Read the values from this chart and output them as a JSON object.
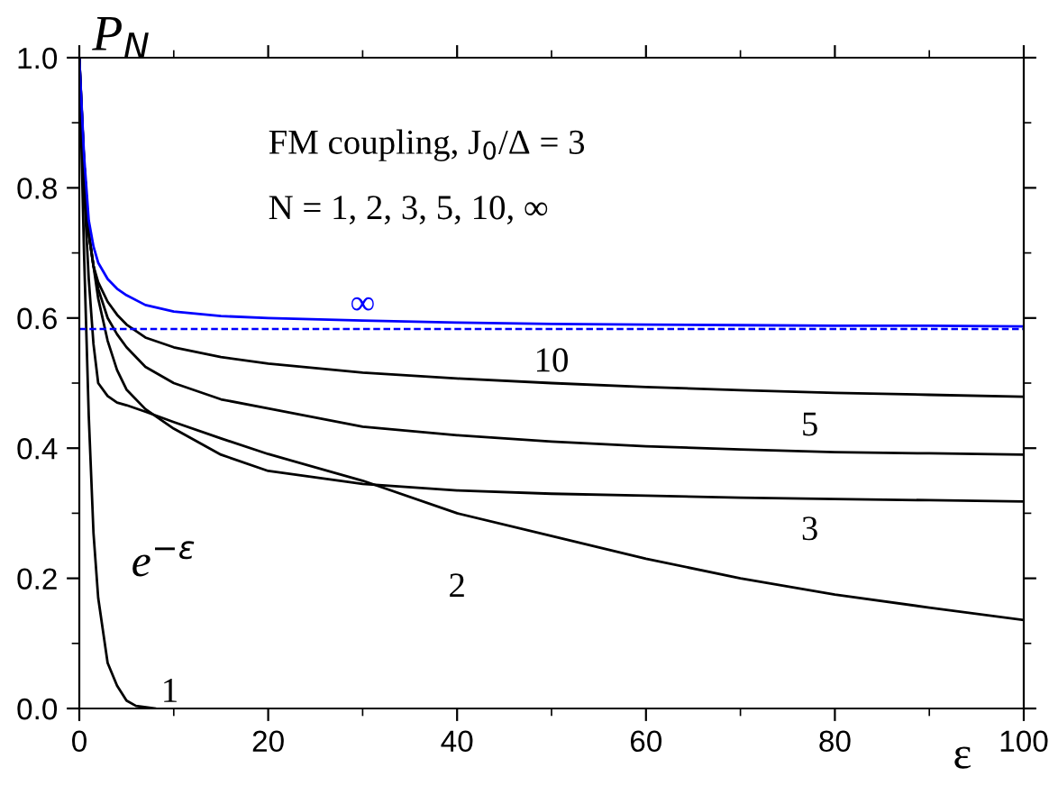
{
  "chart_data": {
    "type": "line",
    "xlabel": "ε",
    "ylabel": "P$_{N}$",
    "xlim": [
      0,
      100
    ],
    "ylim": [
      0,
      1.0
    ],
    "xticks": [
      0,
      20,
      40,
      60,
      80,
      100
    ],
    "yticks": [
      {
        "value": 0,
        "label": "0.0"
      },
      {
        "value": 0.2,
        "label": "0.2"
      },
      {
        "value": 0.4,
        "label": "0.4"
      },
      {
        "value": 0.6,
        "label": "0.6"
      },
      {
        "value": 0.8,
        "label": "0.8"
      },
      {
        "value": 1.0,
        "label": "1.0"
      }
    ],
    "grid": false,
    "legend": false,
    "line_style": "solid",
    "marker": "none",
    "series": [
      {
        "name": "1",
        "color": "#000000",
        "x": [
          0,
          0.5,
          1,
          1.5,
          2,
          3,
          4,
          5,
          6,
          8
        ],
        "values": [
          1,
          0.7,
          0.45,
          0.27,
          0.17,
          0.07,
          0.035,
          0.012,
          0.004,
          0
        ]
      },
      {
        "name": "2",
        "color": "#000000",
        "x": [
          0,
          0.5,
          1,
          1.5,
          2,
          3,
          4,
          5,
          7,
          10,
          15,
          20,
          30,
          40,
          50,
          60,
          70,
          80,
          90,
          100
        ],
        "values": [
          1,
          0.8,
          0.66,
          0.56,
          0.5,
          0.48,
          0.47,
          0.466,
          0.456,
          0.44,
          0.415,
          0.391,
          0.35,
          0.3,
          0.265,
          0.23,
          0.2,
          0.175,
          0.155,
          0.136
        ]
      },
      {
        "name": "3",
        "color": "#000000",
        "x": [
          0,
          0.5,
          1,
          1.5,
          2,
          3,
          4,
          5,
          7,
          10,
          15,
          20,
          30,
          40,
          50,
          60,
          70,
          80,
          90,
          100
        ],
        "values": [
          1,
          0.84,
          0.73,
          0.68,
          0.63,
          0.565,
          0.52,
          0.49,
          0.46,
          0.43,
          0.39,
          0.365,
          0.345,
          0.335,
          0.33,
          0.327,
          0.324,
          0.322,
          0.32,
          0.318
        ]
      },
      {
        "name": "5",
        "color": "#000000",
        "x": [
          0,
          0.5,
          1,
          1.5,
          2,
          3,
          4,
          5,
          7,
          10,
          15,
          20,
          30,
          40,
          50,
          60,
          70,
          80,
          90,
          100
        ],
        "values": [
          1,
          0.84,
          0.73,
          0.68,
          0.645,
          0.6,
          0.575,
          0.555,
          0.525,
          0.5,
          0.475,
          0.461,
          0.433,
          0.42,
          0.41,
          0.403,
          0.398,
          0.394,
          0.392,
          0.39
        ]
      },
      {
        "name": "10",
        "color": "#000000",
        "x": [
          0,
          0.5,
          1,
          1.5,
          2,
          3,
          4,
          5,
          7,
          10,
          15,
          20,
          30,
          40,
          50,
          60,
          70,
          80,
          90,
          100
        ],
        "values": [
          1,
          0.84,
          0.73,
          0.68,
          0.655,
          0.625,
          0.605,
          0.59,
          0.57,
          0.555,
          0.54,
          0.53,
          0.516,
          0.507,
          0.5,
          0.494,
          0.489,
          0.485,
          0.482,
          0.479
        ]
      },
      {
        "name": "∞",
        "color": "#0000ff",
        "x": [
          0,
          0.5,
          1,
          1.5,
          2,
          3,
          4,
          5,
          7,
          10,
          15,
          20,
          30,
          40,
          50,
          60,
          70,
          80,
          90,
          100
        ],
        "values": [
          1,
          0.85,
          0.75,
          0.71,
          0.685,
          0.66,
          0.645,
          0.635,
          0.62,
          0.61,
          0.603,
          0.6,
          0.596,
          0.593,
          0.591,
          0.59,
          0.589,
          0.588,
          0.588,
          0.587
        ]
      }
    ],
    "ref_lines": [
      {
        "axis": "y",
        "value": 0.583,
        "color": "#0000ff",
        "line_style": "dashed"
      }
    ],
    "annotations": [
      "e$^{−ε}$",
      "FM coupling, J$_{0}$/Δ = 3",
      "N = 1, 2, 3, 5, 10, ∞"
    ]
  }
}
